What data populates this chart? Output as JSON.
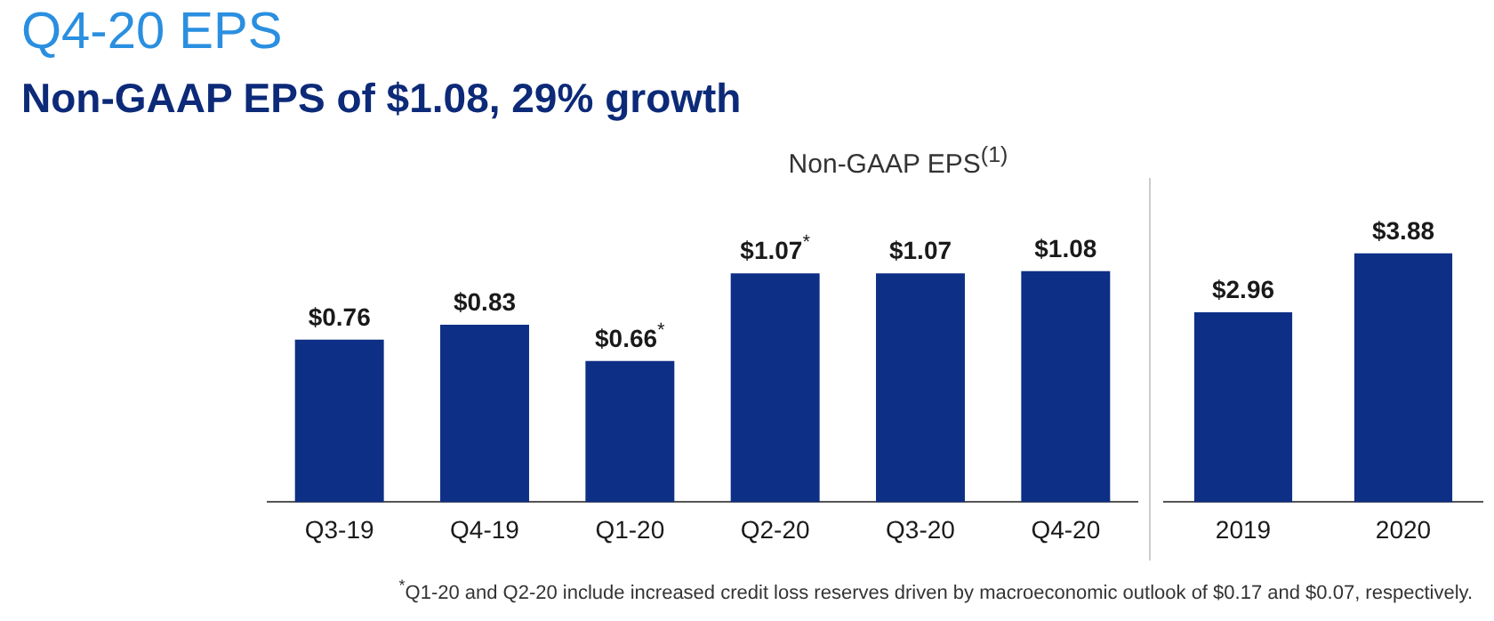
{
  "chart_data": [
    {
      "type": "bar",
      "title": "Q4-20 EPS",
      "subtitle": "Non-GAAP EPS of $1.08, 29% growth",
      "annotations": [
        "Non-GAAP EPS$^{(1)}$",
        "$^{*}$Q1-20 and Q2-20 include increased credit loss reserves driven by macroeconomic outlook of $0.17 and $0.07, respectively."
      ],
      "categories": [
        "Q3-19",
        "Q4-19",
        "Q1-20",
        "Q2-20",
        "Q3-20",
        "Q4-20"
      ],
      "values": [
        0.76,
        0.83,
        0.66,
        1.07,
        1.07,
        1.08
      ],
      "value_labels": [
        "$0.76",
        "$0.83",
        "$0.66$^{*}$",
        "$1.07$^{*}$",
        "$1.07",
        "$1.08"
      ],
      "color": "#0e2f86",
      "grid": false,
      "legend": false
    },
    {
      "type": "bar",
      "categories": [
        "2019",
        "2020"
      ],
      "values": [
        2.96,
        3.88
      ],
      "value_labels": [
        "$2.96",
        "$3.88"
      ],
      "color": "#0e2f86",
      "grid": false,
      "legend": false
    }
  ]
}
